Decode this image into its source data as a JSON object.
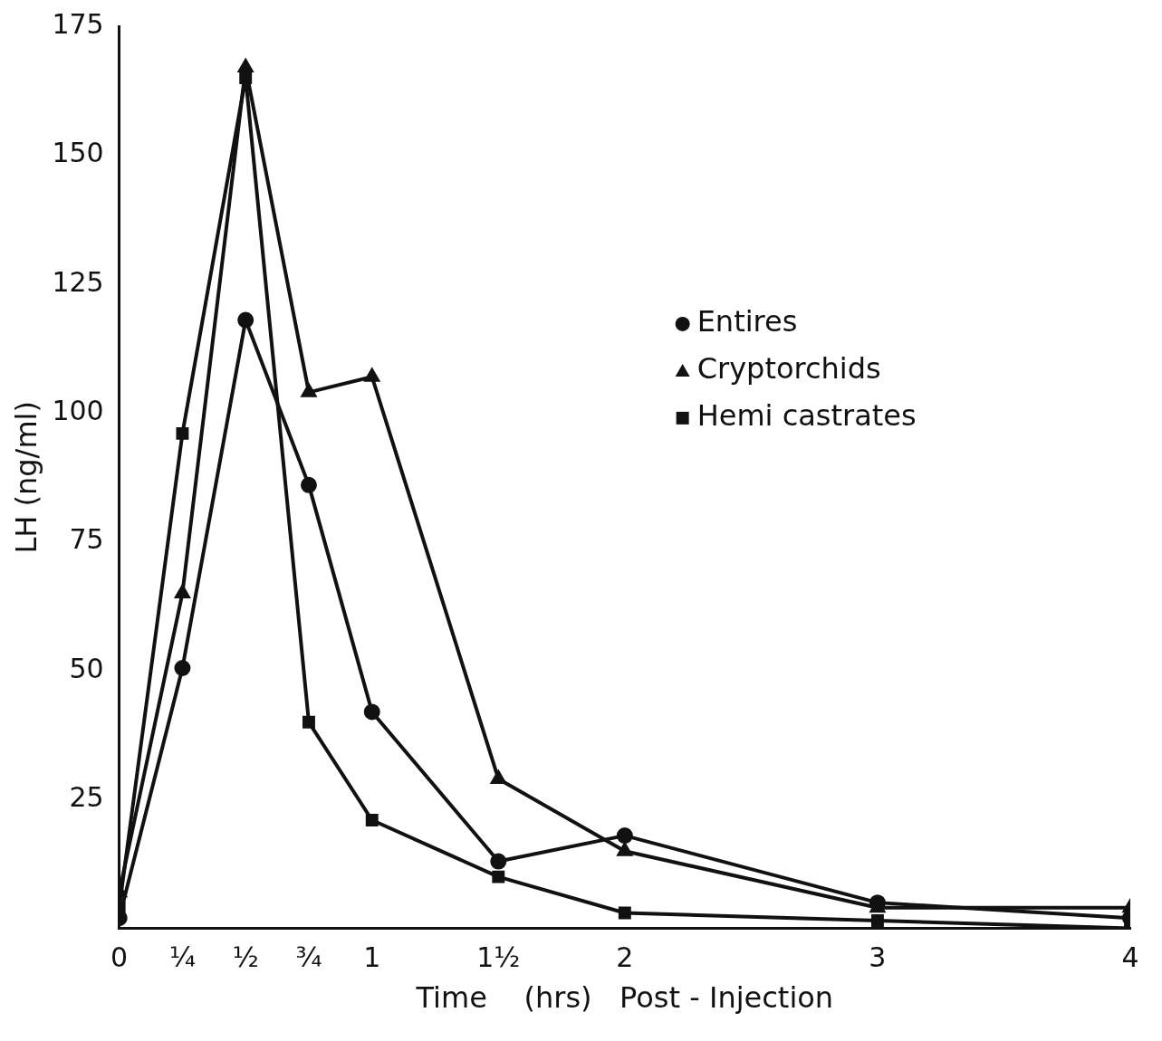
{
  "chart_data": {
    "type": "line",
    "xlabel": "Time    (hrs)   Post - Injection",
    "ylabel": "LH (ng/ml)",
    "x": [
      0,
      0.25,
      0.5,
      0.75,
      1,
      1.5,
      2,
      3,
      4
    ],
    "series": [
      {
        "name": "Entires",
        "color": "#111111",
        "marker": "circle",
        "values": [
          2,
          50.5,
          118,
          86,
          42,
          13,
          18,
          5,
          2
        ]
      },
      {
        "name": "Cryptorchids",
        "color": "#111111",
        "marker": "triangle",
        "values": [
          7,
          65,
          167,
          104,
          107,
          29,
          15,
          4,
          4
        ]
      },
      {
        "name": "Hemi castrates",
        "color": "#111111",
        "marker": "square",
        "values": [
          4,
          96,
          165,
          40,
          21,
          10,
          3,
          1.5,
          0
        ]
      }
    ],
    "xlim": [
      0,
      4
    ],
    "xticks": [
      0,
      {
        "value": 0.25,
        "label": "¼"
      },
      {
        "value": 0.5,
        "label": "½"
      },
      {
        "value": 0.75,
        "label": "¾"
      },
      1,
      {
        "value": 1.5,
        "label": "1½"
      },
      2,
      3,
      4
    ],
    "ylim": [
      0,
      175
    ],
    "yticks": [
      25,
      50,
      75,
      100,
      125,
      150,
      175
    ],
    "grid": false,
    "legend": "right",
    "line_style": "solid"
  }
}
